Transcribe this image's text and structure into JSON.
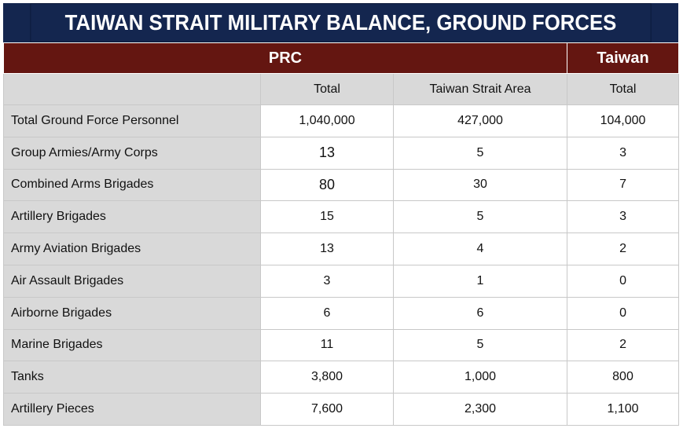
{
  "title": "TAIWAN STRAIT MILITARY BALANCE, GROUND FORCES",
  "groups": {
    "prc": "PRC",
    "taiwan": "Taiwan"
  },
  "subheaders": {
    "prc_total": "Total",
    "prc_strait": "Taiwan Strait Area",
    "taiwan_total": "Total"
  },
  "rows": [
    {
      "label": "Total Ground Force Personnel",
      "prc_total": "1,040,000",
      "prc_strait": "427,000",
      "taiwan_total": "104,000"
    },
    {
      "label": "Group Armies/Army Corps",
      "prc_total": "13",
      "prc_strait": "5",
      "taiwan_total": "3"
    },
    {
      "label": "Combined Arms Brigades",
      "prc_total": "80",
      "prc_strait": "30",
      "taiwan_total": "7"
    },
    {
      "label": "Artillery Brigades",
      "prc_total": "15",
      "prc_strait": "5",
      "taiwan_total": "3"
    },
    {
      "label": "Army Aviation Brigades",
      "prc_total": "13",
      "prc_strait": "4",
      "taiwan_total": "2"
    },
    {
      "label": "Air Assault Brigades",
      "prc_total": "3",
      "prc_strait": "1",
      "taiwan_total": "0"
    },
    {
      "label": "Airborne Brigades",
      "prc_total": "6",
      "prc_strait": "6",
      "taiwan_total": "0"
    },
    {
      "label": "Marine Brigades",
      "prc_total": "11",
      "prc_strait": "5",
      "taiwan_total": "2"
    },
    {
      "label": "Tanks",
      "prc_total": "3,800",
      "prc_strait": "1,000",
      "taiwan_total": "800"
    },
    {
      "label": "Artillery Pieces",
      "prc_total": "7,600",
      "prc_strait": "2,300",
      "taiwan_total": "1,100"
    }
  ]
}
